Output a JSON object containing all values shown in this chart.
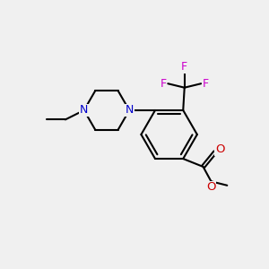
{
  "background_color": "#f0f0f0",
  "bond_color": "#000000",
  "N_color": "#0000cc",
  "O_color": "#cc0000",
  "F_color": "#cc00cc",
  "bond_width": 1.5,
  "figsize": [
    3.0,
    3.0
  ],
  "dpi": 100,
  "xlim": [
    0,
    10
  ],
  "ylim": [
    0,
    10
  ]
}
